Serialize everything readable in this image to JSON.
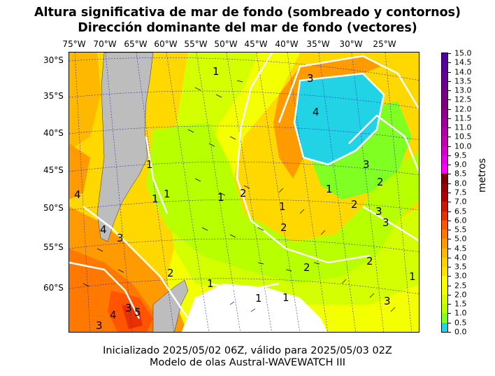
{
  "title": {
    "line1": "Altura significativa de mar de fondo (sombreado y contornos)",
    "line2": "Dirección dominante del mar de fondo (vectores)"
  },
  "longitude_labels": [
    "75°W",
    "70°W",
    "65°W",
    "60°W",
    "55°W",
    "50°W",
    "45°W",
    "40°W",
    "35°W",
    "30°W",
    "25°W"
  ],
  "latitude_labels": [
    "30°S",
    "35°S",
    "40°S",
    "45°S",
    "50°S",
    "55°S",
    "60°S"
  ],
  "colorbar": {
    "label": "metros",
    "ticks": [
      "15.0",
      "14.5",
      "14.0",
      "13.5",
      "13.0",
      "12.5",
      "12.0",
      "11.5",
      "11.0",
      "10.5",
      "10.0",
      "9.5",
      "9.0",
      "8.5",
      "8.0",
      "7.5",
      "7.0",
      "6.5",
      "6.0",
      "5.5",
      "5.0",
      "4.5",
      "4.0",
      "3.5",
      "3.0",
      "2.5",
      "2.0",
      "1.5",
      "1.0",
      "0.5",
      "0.0"
    ],
    "colors": [
      "#22d3e6",
      "#7fff22",
      "#b8ff00",
      "#d4ff00",
      "#f4ff00",
      "#ffff00",
      "#ffe000",
      "#ffd000",
      "#ffb800",
      "#ff9a00",
      "#ff7800",
      "#ff5500",
      "#e83000",
      "#cc1800",
      "#b00000",
      "#960000",
      "#7a0000",
      "#ff00ff",
      "#e600e6",
      "#d400c8",
      "#c400b4",
      "#b000aa",
      "#a0009e",
      "#900090",
      "#800080",
      "#760088",
      "#6c0090",
      "#640096",
      "#5a009a",
      "#50009e"
    ]
  },
  "contour_labels": [
    "1",
    "1",
    "1",
    "1",
    "1",
    "1",
    "1",
    "1",
    "1",
    "1",
    "1",
    "2",
    "2",
    "2",
    "2",
    "2",
    "2",
    "2",
    "3",
    "3",
    "3",
    "3",
    "3",
    "3",
    "3",
    "3",
    "4",
    "4",
    "4",
    "4",
    "5"
  ],
  "map_colors": {
    "land": "#bdbdbd",
    "ice": "#ffffff"
  },
  "footer": {
    "line1": "Inicializado 2025/05/02 06Z, válido para 2025/05/03 02Z",
    "line2": "Modelo de olas Austral-WAVEWATCH III"
  }
}
